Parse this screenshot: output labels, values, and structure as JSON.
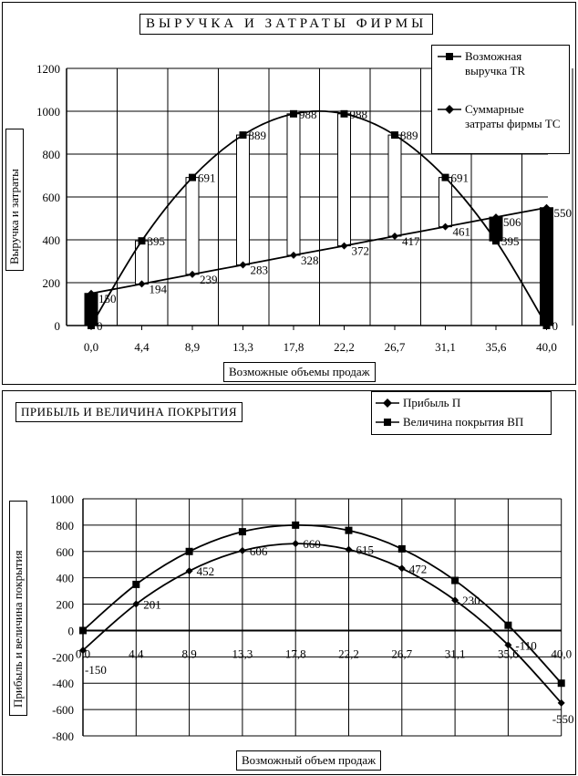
{
  "chart_data": [
    {
      "type": "line",
      "title": "ВЫРУЧКА  И  ЗАТРАТЫ ФИРМЫ",
      "xlabel": "Возможные объемы продаж",
      "ylabel": "Выручка и затраты",
      "categories": [
        "0,0",
        "4,4",
        "8,9",
        "13,3",
        "17,8",
        "22,2",
        "26,7",
        "31,1",
        "35,6",
        "40,0"
      ],
      "x": [
        0,
        4.4,
        8.9,
        13.3,
        17.8,
        22.2,
        26.7,
        31.1,
        35.6,
        40.0
      ],
      "ylim": [
        0,
        1200
      ],
      "yticks": [
        0,
        200,
        400,
        600,
        800,
        1000,
        1200
      ],
      "grid": true,
      "legend_position": "top-right",
      "series": [
        {
          "name": "Возможная выручка TR",
          "marker": "square",
          "values": [
            0,
            395,
            691,
            889,
            988,
            988,
            889,
            691,
            395,
            0
          ],
          "labels": [
            "0",
            "395",
            "691",
            "889",
            "988",
            "988",
            "889",
            "691",
            "395",
            "0"
          ]
        },
        {
          "name": "Суммарные затраты фирмы TC",
          "marker": "diamond",
          "values": [
            150,
            194,
            239,
            283,
            328,
            372,
            417,
            461,
            506,
            550
          ],
          "labels": [
            "150",
            "194",
            "239",
            "283",
            "328",
            "372",
            "417",
            "461",
            "506",
            "550"
          ]
        }
      ]
    },
    {
      "type": "line",
      "title": "ПРИБЫЛЬ И ВЕЛИЧИНА ПОКРЫТИЯ",
      "xlabel": "Возможный объем продаж",
      "ylabel": "Прибыль и величина покрытия",
      "categories": [
        "0,0",
        "4,4",
        "8,9",
        "13,3",
        "17,8",
        "22,2",
        "26,7",
        "31,1",
        "35,6",
        "40,0"
      ],
      "x": [
        0,
        4.4,
        8.9,
        13.3,
        17.8,
        22.2,
        26.7,
        31.1,
        35.6,
        40.0
      ],
      "ylim": [
        -800,
        1000
      ],
      "yticks": [
        -800,
        -600,
        -400,
        -200,
        0,
        200,
        400,
        600,
        800,
        1000
      ],
      "grid": true,
      "legend_position": "top-right",
      "series": [
        {
          "name": "Прибыль П",
          "marker": "diamond",
          "values": [
            -150,
            201,
            452,
            606,
            660,
            615,
            472,
            230,
            -110,
            -550
          ],
          "labels": [
            "-150",
            "201",
            "452",
            "606",
            "660",
            "615",
            "472",
            "230",
            "-110",
            "-550"
          ]
        },
        {
          "name": "Величина  покрытия ВП",
          "marker": "square",
          "values": [
            0,
            350,
            600,
            750,
            800,
            760,
            620,
            380,
            40,
            -400
          ]
        }
      ]
    }
  ]
}
